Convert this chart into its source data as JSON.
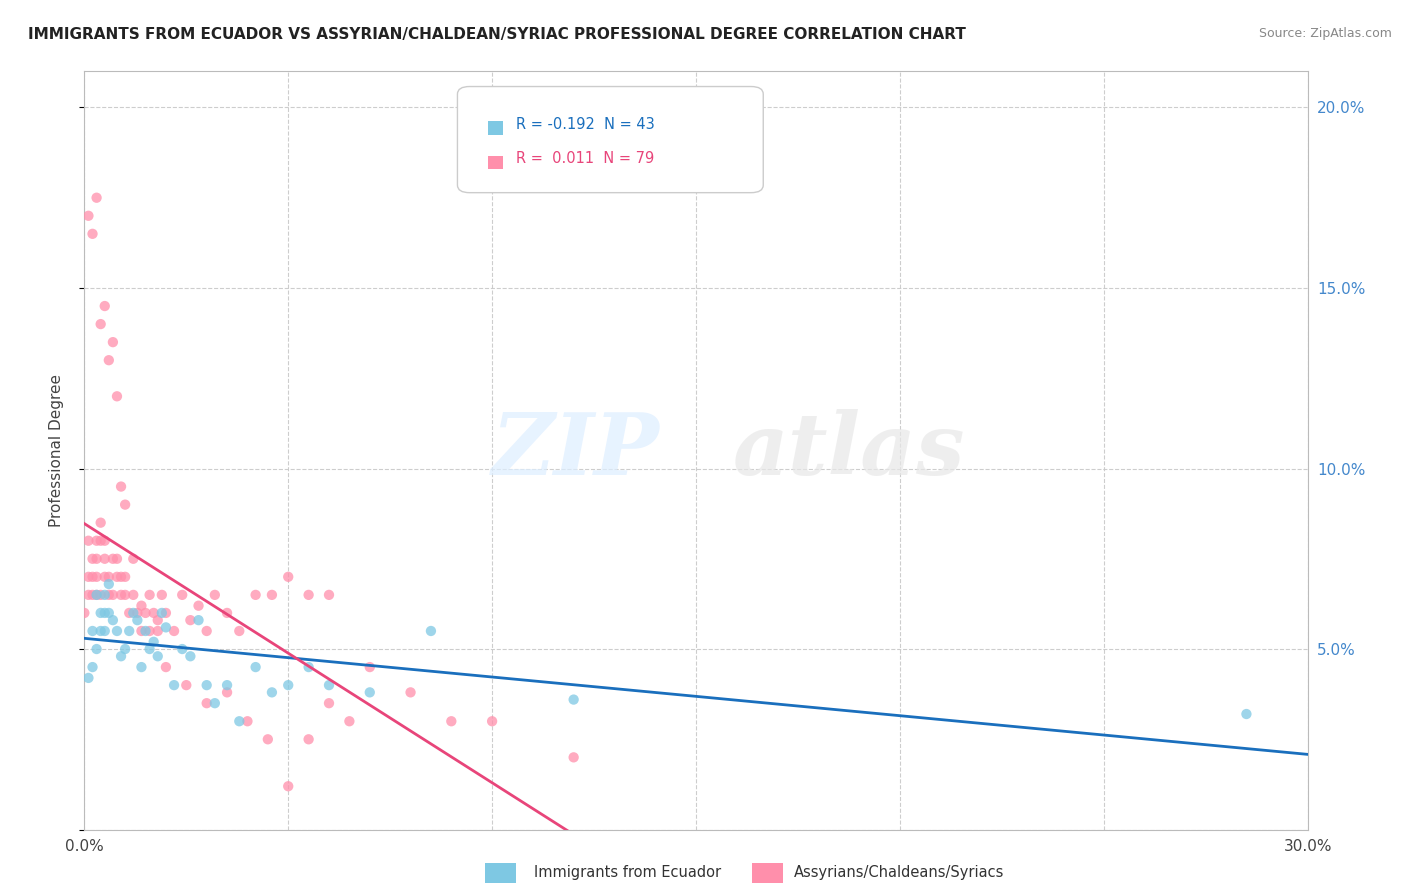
{
  "title": "IMMIGRANTS FROM ECUADOR VS ASSYRIAN/CHALDEAN/SYRIAC PROFESSIONAL DEGREE CORRELATION CHART",
  "source": "Source: ZipAtlas.com",
  "ylabel": "Professional Degree",
  "xlim": [
    0.0,
    0.3
  ],
  "ylim": [
    0.0,
    0.21
  ],
  "xticks": [
    0.0,
    0.05,
    0.1,
    0.15,
    0.2,
    0.25,
    0.3
  ],
  "xtick_labels": [
    "0.0%",
    "",
    "",
    "",
    "",
    "",
    "30.0%"
  ],
  "yticks": [
    0.0,
    0.05,
    0.1,
    0.15,
    0.2
  ],
  "ytick_labels_right": [
    "",
    "5.0%",
    "10.0%",
    "15.0%",
    "20.0%"
  ],
  "blue_color": "#7ec8e3",
  "pink_color": "#ff8fab",
  "blue_line_color": "#1a6fbd",
  "pink_line_color": "#e8457a",
  "R_blue": -0.192,
  "N_blue": 43,
  "R_pink": 0.011,
  "N_pink": 79,
  "legend_label_blue": "Immigrants from Ecuador",
  "legend_label_pink": "Assyrians/Chaldeans/Syriacs",
  "watermark_zip": "ZIP",
  "watermark_atlas": "atlas",
  "background_color": "#ffffff",
  "grid_color": "#c8c8c8",
  "blue_scatter_x": [
    0.001,
    0.002,
    0.002,
    0.003,
    0.003,
    0.004,
    0.004,
    0.005,
    0.005,
    0.005,
    0.006,
    0.006,
    0.007,
    0.008,
    0.009,
    0.01,
    0.011,
    0.012,
    0.013,
    0.014,
    0.015,
    0.016,
    0.017,
    0.018,
    0.019,
    0.02,
    0.022,
    0.024,
    0.026,
    0.028,
    0.03,
    0.032,
    0.035,
    0.038,
    0.042,
    0.046,
    0.05,
    0.055,
    0.06,
    0.07,
    0.085,
    0.12,
    0.285
  ],
  "blue_scatter_y": [
    0.042,
    0.055,
    0.045,
    0.065,
    0.05,
    0.06,
    0.055,
    0.06,
    0.055,
    0.065,
    0.06,
    0.068,
    0.058,
    0.055,
    0.048,
    0.05,
    0.055,
    0.06,
    0.058,
    0.045,
    0.055,
    0.05,
    0.052,
    0.048,
    0.06,
    0.056,
    0.04,
    0.05,
    0.048,
    0.058,
    0.04,
    0.035,
    0.04,
    0.03,
    0.045,
    0.038,
    0.04,
    0.045,
    0.04,
    0.038,
    0.055,
    0.036,
    0.032
  ],
  "pink_scatter_x": [
    0.0,
    0.001,
    0.001,
    0.001,
    0.002,
    0.002,
    0.002,
    0.003,
    0.003,
    0.003,
    0.003,
    0.004,
    0.004,
    0.004,
    0.005,
    0.005,
    0.005,
    0.006,
    0.006,
    0.007,
    0.007,
    0.008,
    0.008,
    0.009,
    0.009,
    0.01,
    0.01,
    0.011,
    0.012,
    0.013,
    0.014,
    0.015,
    0.016,
    0.017,
    0.018,
    0.019,
    0.02,
    0.022,
    0.024,
    0.026,
    0.028,
    0.03,
    0.032,
    0.035,
    0.038,
    0.042,
    0.046,
    0.05,
    0.055,
    0.06,
    0.001,
    0.002,
    0.003,
    0.004,
    0.005,
    0.006,
    0.007,
    0.008,
    0.009,
    0.01,
    0.012,
    0.014,
    0.016,
    0.018,
    0.02,
    0.025,
    0.03,
    0.035,
    0.04,
    0.045,
    0.05,
    0.055,
    0.06,
    0.065,
    0.07,
    0.08,
    0.09,
    0.1,
    0.12
  ],
  "pink_scatter_y": [
    0.06,
    0.07,
    0.065,
    0.08,
    0.065,
    0.07,
    0.075,
    0.07,
    0.075,
    0.065,
    0.08,
    0.065,
    0.08,
    0.085,
    0.07,
    0.075,
    0.08,
    0.065,
    0.07,
    0.075,
    0.065,
    0.07,
    0.075,
    0.065,
    0.07,
    0.065,
    0.07,
    0.06,
    0.065,
    0.06,
    0.055,
    0.06,
    0.055,
    0.06,
    0.055,
    0.065,
    0.06,
    0.055,
    0.065,
    0.058,
    0.062,
    0.055,
    0.065,
    0.06,
    0.055,
    0.065,
    0.065,
    0.07,
    0.065,
    0.065,
    0.17,
    0.165,
    0.175,
    0.14,
    0.145,
    0.13,
    0.135,
    0.12,
    0.095,
    0.09,
    0.075,
    0.062,
    0.065,
    0.058,
    0.045,
    0.04,
    0.035,
    0.038,
    0.03,
    0.025,
    0.012,
    0.025,
    0.035,
    0.03,
    0.045,
    0.038,
    0.03,
    0.03,
    0.02
  ]
}
